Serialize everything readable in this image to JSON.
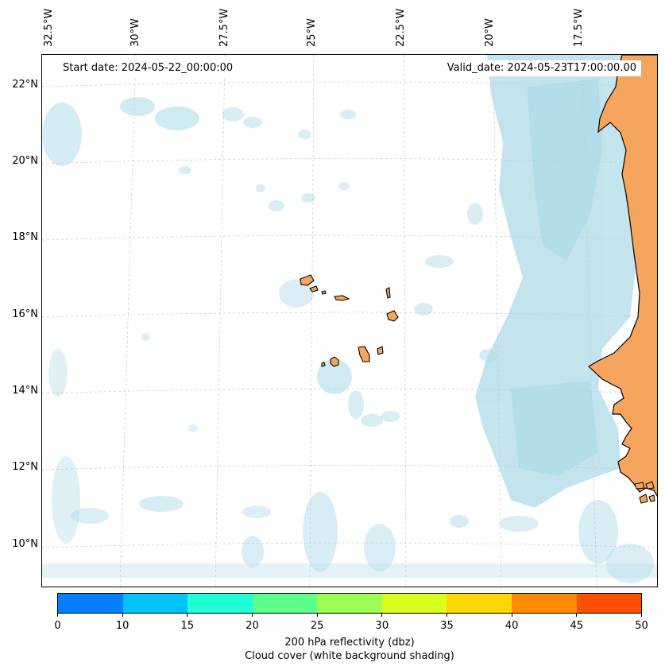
{
  "map": {
    "start_date": "Start date: 2024-05-22_00:00:00",
    "valid_date": "Valid_date: 2024-05-23T17:00:00.00",
    "lon_labels": [
      "32.5°W",
      "30°W",
      "27.5°W",
      "25°W",
      "22.5°W",
      "20°W",
      "17.5°W"
    ],
    "lat_labels": [
      "22°N",
      "20°N",
      "18°N",
      "16°N",
      "14°N",
      "12°N",
      "10°N"
    ],
    "land_color": "#f5a55e",
    "cloud_color": "#a8d8e6",
    "coast_color": "#000000"
  },
  "colorbar": {
    "colors": [
      "#007fff",
      "#00c3ff",
      "#1effd5",
      "#5cff8c",
      "#9cff52",
      "#d8ff1e",
      "#ffd600",
      "#ff8c00",
      "#ff4e00"
    ],
    "tick_labels": [
      "0",
      "10",
      "15",
      "20",
      "25",
      "30",
      "35",
      "40",
      "45",
      "50"
    ],
    "caption_line1": "200 hPa reflectivity (dbz)",
    "caption_line2": "Cloud cover (white background shading)"
  }
}
